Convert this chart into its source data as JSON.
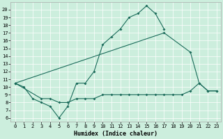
{
  "xlabel": "Humidex (Indice chaleur)",
  "bg_color": "#cceedd",
  "line_color": "#1a6b5a",
  "xlim": [
    -0.5,
    23.5
  ],
  "ylim": [
    5.5,
    21.0
  ],
  "xticks": [
    0,
    1,
    2,
    3,
    4,
    5,
    6,
    7,
    8,
    9,
    10,
    11,
    12,
    13,
    14,
    15,
    16,
    17,
    18,
    19,
    20,
    21,
    22,
    23
  ],
  "yticks": [
    6,
    7,
    8,
    9,
    10,
    11,
    12,
    13,
    14,
    15,
    16,
    17,
    18,
    19,
    20
  ],
  "line1_x": [
    0,
    1,
    2,
    3,
    4,
    5,
    6,
    7,
    8,
    9,
    10,
    11,
    12,
    13,
    14,
    15,
    16,
    17
  ],
  "line1_y": [
    10.5,
    10.0,
    8.5,
    8.0,
    7.5,
    6.0,
    7.5,
    10.5,
    10.5,
    12.0,
    15.5,
    16.5,
    17.5,
    19.0,
    19.5,
    20.5,
    19.5,
    17.5
  ],
  "line2_x": [
    0,
    17,
    20,
    21,
    22,
    23
  ],
  "line2_y": [
    10.5,
    17.0,
    14.5,
    10.5,
    9.5,
    9.5
  ],
  "line3_x": [
    0,
    3,
    4,
    5,
    6,
    7,
    8,
    9,
    10,
    11,
    12,
    13,
    14,
    15,
    16,
    17,
    18,
    19,
    20,
    21,
    22,
    23
  ],
  "line3_y": [
    10.5,
    8.5,
    8.5,
    8.0,
    8.0,
    8.5,
    8.5,
    8.5,
    9.0,
    9.0,
    9.0,
    9.0,
    9.0,
    9.0,
    9.0,
    9.0,
    9.0,
    9.0,
    9.5,
    10.5,
    9.5,
    9.5
  ],
  "grid_color": "#ffffff",
  "xlabel_fontsize": 6,
  "tick_fontsize": 5
}
